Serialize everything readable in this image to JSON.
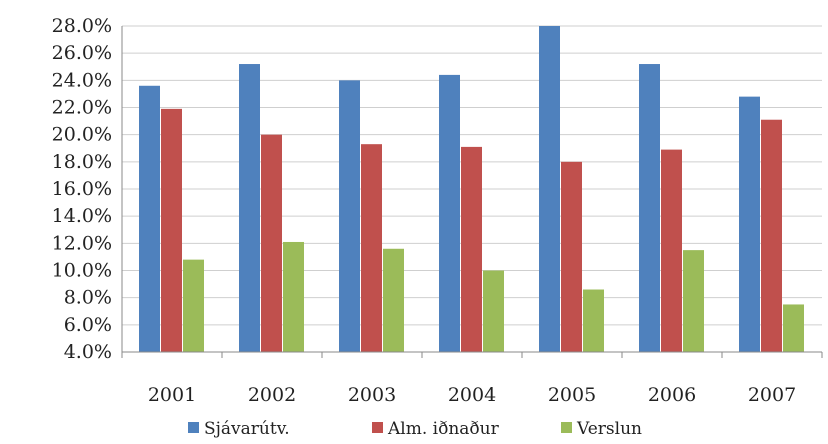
{
  "chart_data": {
    "type": "bar",
    "title": "",
    "xlabel": "",
    "ylabel": "",
    "categories": [
      "2001",
      "2002",
      "2003",
      "2004",
      "2005",
      "2006",
      "2007"
    ],
    "series": [
      {
        "name": "Sjávarútv.",
        "color": "#4f81bd",
        "values": [
          23.6,
          25.2,
          24.0,
          24.4,
          28.0,
          25.2,
          22.8
        ]
      },
      {
        "name": "Alm. iðnaður",
        "color": "#c0504d",
        "values": [
          21.9,
          20.0,
          19.3,
          19.1,
          18.0,
          18.9,
          21.1
        ]
      },
      {
        "name": "Verslun",
        "color": "#9bbb59",
        "values": [
          10.8,
          12.1,
          11.6,
          10.0,
          8.6,
          11.5,
          7.5
        ]
      }
    ],
    "ylim": [
      4.0,
      28.0
    ],
    "yticks": [
      "4.0%",
      "6.0%",
      "8.0%",
      "10.0%",
      "12.0%",
      "14.0%",
      "16.0%",
      "18.0%",
      "20.0%",
      "22.0%",
      "24.0%",
      "26.0%",
      "28.0%"
    ],
    "ytick_values": [
      4,
      6,
      8,
      10,
      12,
      14,
      16,
      18,
      20,
      22,
      24,
      26,
      28
    ],
    "grid": true,
    "legend_position": "bottom"
  }
}
